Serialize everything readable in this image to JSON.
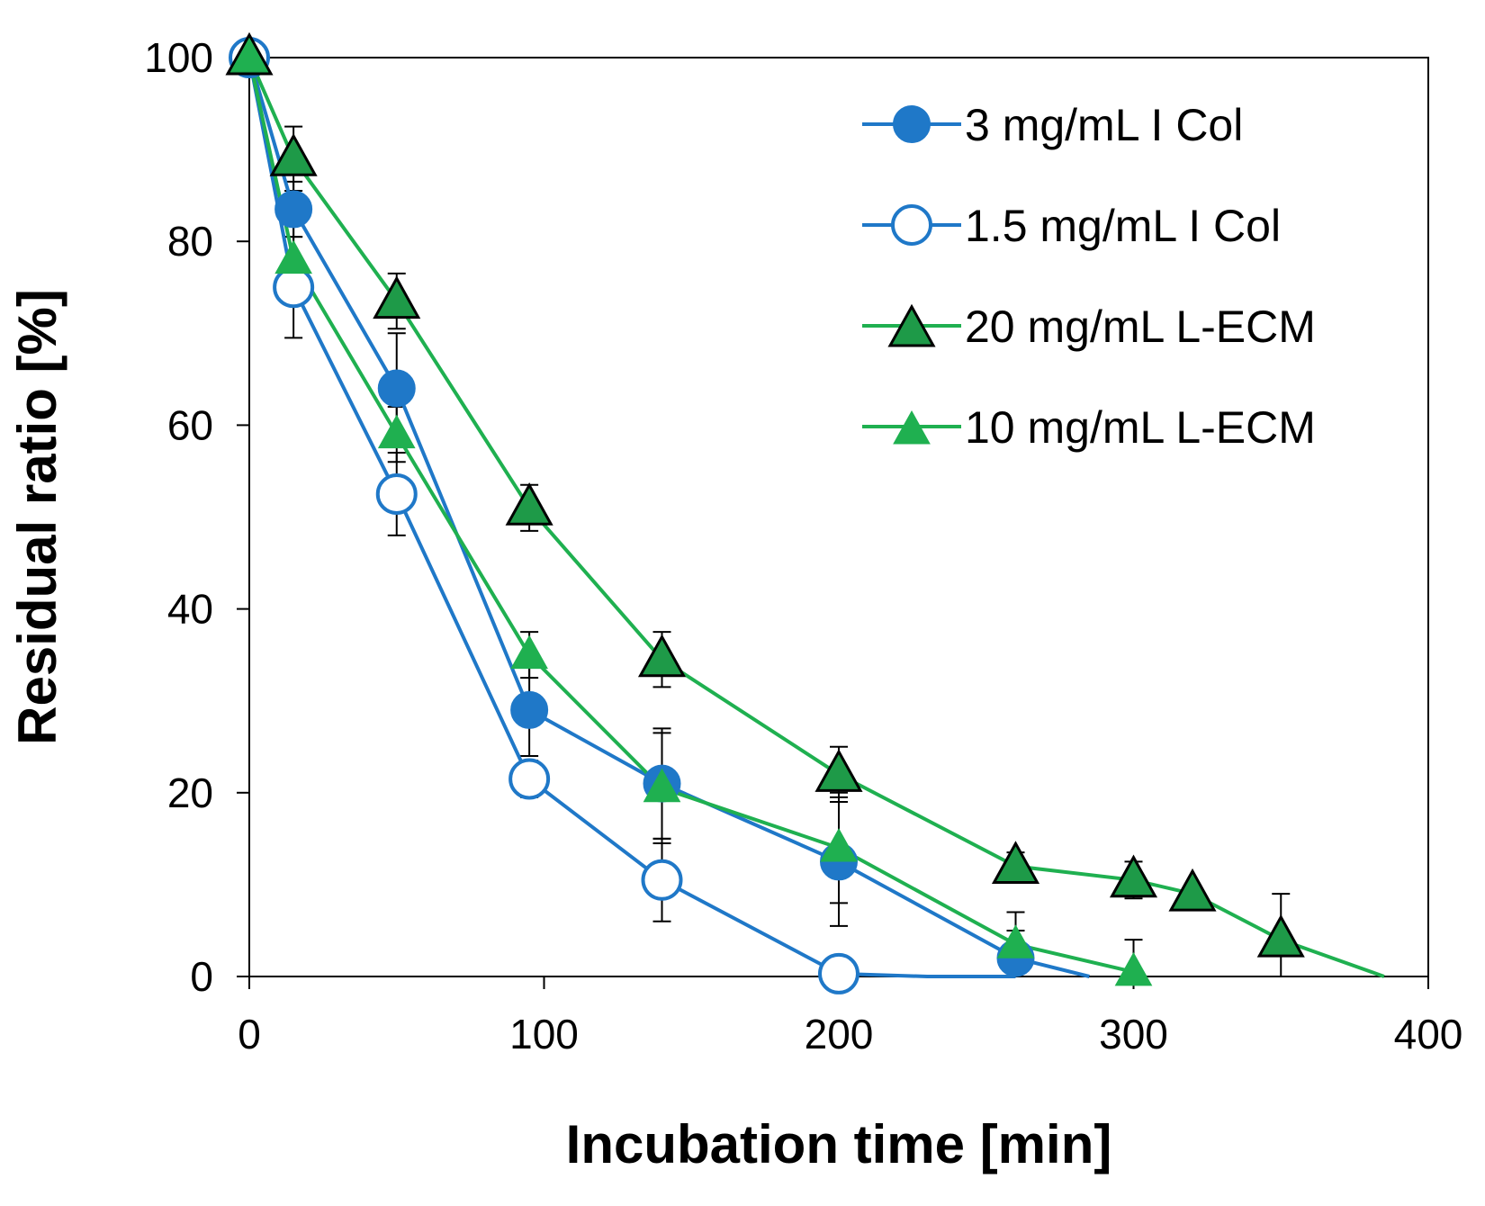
{
  "chart_data": {
    "type": "line",
    "title": "",
    "xlabel": "Incubation time [min]",
    "ylabel": "Residual ratio [%]",
    "xlim": [
      0,
      400
    ],
    "ylim": [
      0,
      100
    ],
    "xticks": [
      0,
      100,
      200,
      300,
      400
    ],
    "yticks": [
      0,
      20,
      40,
      60,
      80,
      100
    ],
    "grid": false,
    "legend_position": "top-right",
    "colors": {
      "blue": "#1f78c8",
      "green": "#1fb050",
      "dark_green": "#1e9a48"
    },
    "series": [
      {
        "name": "3 mg/mL I Col",
        "marker": "circle-filled",
        "color": "#1f78c8",
        "x": [
          0,
          15,
          50,
          95,
          140,
          200,
          260,
          285
        ],
        "y": [
          100,
          83.5,
          64,
          29,
          21,
          12.5,
          2,
          0
        ],
        "err": [
          0,
          3,
          6,
          5,
          6,
          7,
          3,
          null
        ]
      },
      {
        "name": "1.5 mg/mL I Col",
        "marker": "circle-open",
        "color": "#1f78c8",
        "x": [
          0,
          15,
          50,
          95,
          140,
          200,
          230,
          260
        ],
        "y": [
          100,
          75,
          52.5,
          21.5,
          10.5,
          0.3,
          0,
          0
        ],
        "err": [
          0,
          5.5,
          4.5,
          2,
          4.5,
          0,
          null,
          null
        ]
      },
      {
        "name": "20 mg/mL L-ECM",
        "marker": "triangle-large-outlined",
        "color": "#1fb050",
        "x": [
          0,
          15,
          50,
          95,
          140,
          200,
          260,
          300,
          320,
          350,
          385
        ],
        "y": [
          100,
          89,
          73.5,
          51,
          34.5,
          22,
          12,
          10.5,
          9,
          4,
          0
        ],
        "err": [
          0,
          3.5,
          3,
          2.5,
          3,
          3,
          1.5,
          2,
          0,
          5,
          null
        ]
      },
      {
        "name": "10 mg/mL L-ECM",
        "marker": "triangle-small",
        "color": "#1fb050",
        "x": [
          0,
          15,
          50,
          95,
          140,
          200,
          260,
          300
        ],
        "y": [
          100,
          78,
          59,
          35,
          20.5,
          14,
          3.5,
          0.5
        ],
        "err": [
          0,
          4,
          3,
          2.5,
          6,
          6,
          3.5,
          3.5
        ]
      }
    ]
  }
}
